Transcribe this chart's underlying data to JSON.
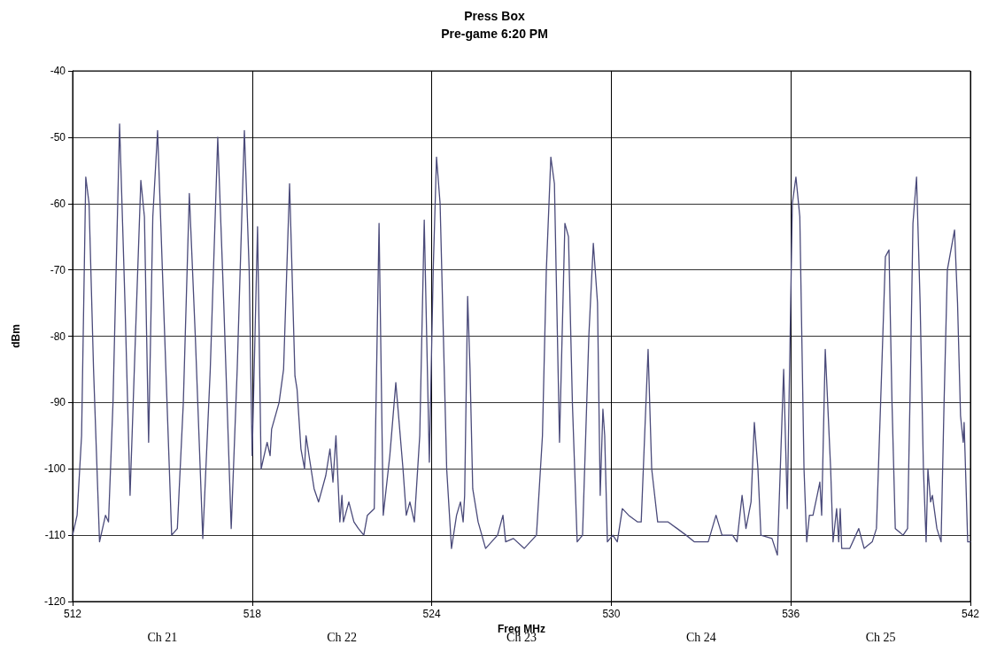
{
  "chart_data": {
    "type": "line",
    "title": "Press Box",
    "subtitle": "Pre-game 6:20 PM",
    "xlabel": "Freq MHz",
    "ylabel": "dBm",
    "xlim": [
      512,
      542
    ],
    "xticks": [
      512,
      518,
      524,
      530,
      536,
      542
    ],
    "ylim": [
      -120,
      -40
    ],
    "yticks": [
      -120,
      -110,
      -100,
      -90,
      -80,
      -70,
      -60,
      -50,
      -40
    ],
    "grid": true,
    "marker": "none",
    "line_style": "solid",
    "annotations": [
      "Ch 21",
      "Ch 22",
      "Ch 23",
      "Ch 24",
      "Ch 25"
    ],
    "series": [
      {
        "color": "#4a4a7a",
        "x": [
          512,
          512.15,
          512.3,
          512.44,
          512.55,
          512.7,
          512.9,
          513.1,
          513.2,
          513.35,
          513.57,
          513.75,
          513.92,
          514.1,
          514.28,
          514.4,
          514.54,
          514.68,
          514.84,
          515.0,
          515.31,
          515.5,
          515.7,
          515.9,
          516.1,
          516.35,
          516.6,
          516.85,
          517.05,
          517.3,
          517.5,
          517.74,
          517.9,
          518.0,
          518.18,
          518.3,
          518.5,
          518.6,
          518.65,
          518.9,
          519.05,
          519.25,
          519.43,
          519.5,
          519.63,
          519.75,
          519.8,
          519.9,
          520.07,
          520.22,
          520.46,
          520.6,
          520.7,
          520.8,
          520.93,
          521.0,
          521.05,
          521.23,
          521.4,
          521.55,
          521.73,
          521.85,
          522.08,
          522.24,
          522.38,
          522.6,
          522.8,
          523.04,
          523.15,
          523.27,
          523.42,
          523.6,
          523.75,
          523.92,
          524.05,
          524.16,
          524.28,
          524.5,
          524.66,
          524.83,
          524.96,
          525.05,
          525.1,
          525.2,
          525.28,
          525.37,
          525.55,
          525.8,
          526.0,
          526.2,
          526.38,
          526.47,
          526.73,
          527.09,
          527.5,
          527.7,
          527.83,
          527.98,
          528.1,
          528.27,
          528.45,
          528.57,
          528.7,
          528.86,
          529.04,
          529.25,
          529.4,
          529.54,
          529.63,
          529.72,
          529.78,
          529.87,
          530.05,
          530.2,
          530.37,
          530.58,
          530.88,
          531.0,
          531.23,
          531.35,
          531.45,
          531.55,
          531.9,
          532.2,
          532.5,
          532.77,
          533.24,
          533.5,
          533.7,
          534.05,
          534.2,
          534.37,
          534.5,
          534.67,
          534.78,
          534.9,
          535.0,
          535.37,
          535.55,
          535.76,
          535.88,
          536.05,
          536.17,
          536.3,
          536.44,
          536.53,
          536.62,
          536.74,
          536.88,
          536.97,
          537.03,
          537.15,
          537.33,
          537.41,
          537.53,
          537.6,
          537.65,
          537.7,
          537.97,
          538.27,
          538.45,
          538.72,
          538.86,
          539.0,
          539.16,
          539.28,
          539.38,
          539.49,
          539.75,
          539.9,
          540.0,
          540.08,
          540.2,
          540.32,
          540.43,
          540.52,
          540.58,
          540.67,
          540.73,
          540.88,
          541.02,
          541.12,
          541.23,
          541.47,
          541.57,
          541.67,
          541.76,
          541.79,
          541.91,
          542
        ],
        "values": [
          -110,
          -107,
          -95,
          -56,
          -60,
          -85,
          -111,
          -107,
          -108,
          -90,
          -48,
          -75,
          -104,
          -80,
          -56.5,
          -62,
          -96,
          -62,
          -49,
          -70,
          -110,
          -109,
          -90,
          -58.5,
          -80,
          -110.5,
          -85,
          -50,
          -75,
          -109,
          -85,
          -49,
          -70,
          -98,
          -63.5,
          -100,
          -96,
          -98,
          -94,
          -90,
          -85,
          -57,
          -86,
          -88,
          -97,
          -100,
          -95,
          -98,
          -103,
          -105,
          -101,
          -97,
          -102,
          -95,
          -108,
          -104,
          -108,
          -105,
          -108,
          -109,
          -110,
          -107,
          -106,
          -63,
          -107,
          -98,
          -87,
          -100,
          -107,
          -105,
          -108,
          -95,
          -62.5,
          -99,
          -70,
          -53,
          -60,
          -100,
          -112,
          -107,
          -105,
          -108,
          -104,
          -74,
          -85,
          -103,
          -108,
          -112,
          -111,
          -110,
          -107,
          -111,
          -110.5,
          -112,
          -110,
          -95,
          -70,
          -53,
          -57,
          -96,
          -63,
          -65,
          -90,
          -111,
          -110,
          -80,
          -66,
          -75,
          -104,
          -91,
          -95,
          -111,
          -110,
          -111,
          -106,
          -107,
          -108,
          -108,
          -82,
          -100,
          -104,
          -108,
          -108,
          -109,
          -110,
          -111,
          -111,
          -107,
          -110,
          -110,
          -111,
          -104,
          -109,
          -105,
          -93,
          -100,
          -110,
          -110.5,
          -113,
          -85,
          -106,
          -60,
          -56,
          -62,
          -100,
          -111,
          -107,
          -107,
          -104,
          -102,
          -107,
          -82,
          -100,
          -111,
          -106,
          -111,
          -106,
          -112,
          -112,
          -109,
          -112,
          -111,
          -109,
          -90,
          -68,
          -67,
          -90,
          -109,
          -110,
          -109,
          -85,
          -63,
          -56,
          -75,
          -100,
          -111,
          -100,
          -105,
          -104,
          -109,
          -111,
          -90,
          -70,
          -64,
          -75,
          -92,
          -96,
          -93,
          -111,
          -111
        ]
      }
    ]
  }
}
